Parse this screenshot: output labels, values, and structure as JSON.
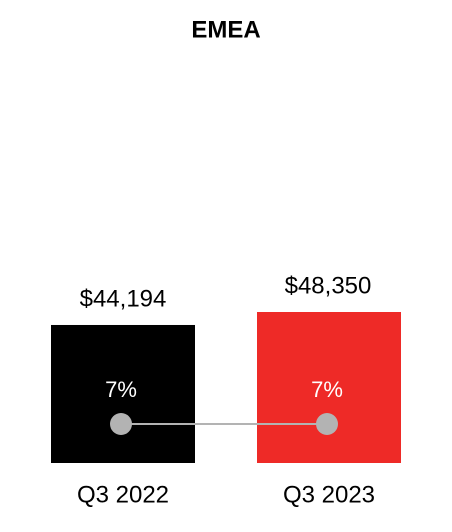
{
  "chart_data": {
    "type": "bar",
    "title": "EMEA",
    "categories": [
      "Q3 2022",
      "Q3 2023"
    ],
    "values": [
      44194,
      48350
    ],
    "value_labels": [
      "$44,194",
      "$48,350"
    ],
    "colors": [
      "#000000",
      "#ee2a27"
    ],
    "line": {
      "values": [
        7,
        7
      ],
      "value_labels": [
        "7%",
        "7%"
      ],
      "color": "#b3b3b3"
    }
  }
}
